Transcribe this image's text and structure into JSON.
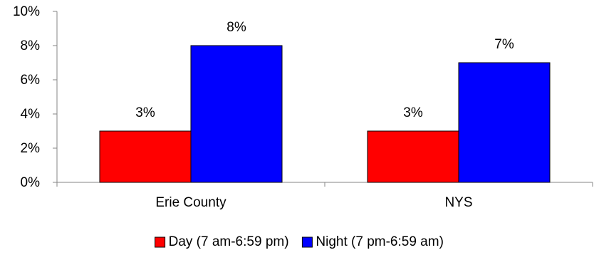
{
  "chart_data": {
    "type": "bar",
    "title": "",
    "xlabel": "",
    "ylabel": "",
    "categories": [
      "Erie County",
      "NYS"
    ],
    "series": [
      {
        "name": "Day (7 am-6:59 pm)",
        "color": "#ff0000",
        "values": [
          3,
          3
        ],
        "labels": [
          "3%",
          "3%"
        ]
      },
      {
        "name": "Night (7 pm-6:59 am)",
        "color": "#0000ff",
        "values": [
          8,
          7
        ],
        "labels": [
          "8%",
          "7%"
        ]
      }
    ],
    "ylim": [
      0,
      10
    ],
    "yticks": [
      0,
      2,
      4,
      6,
      8,
      10
    ],
    "ytick_labels": [
      "0%",
      "2%",
      "4%",
      "6%",
      "8%",
      "10%"
    ],
    "grid": false,
    "legend_position": "bottom"
  }
}
